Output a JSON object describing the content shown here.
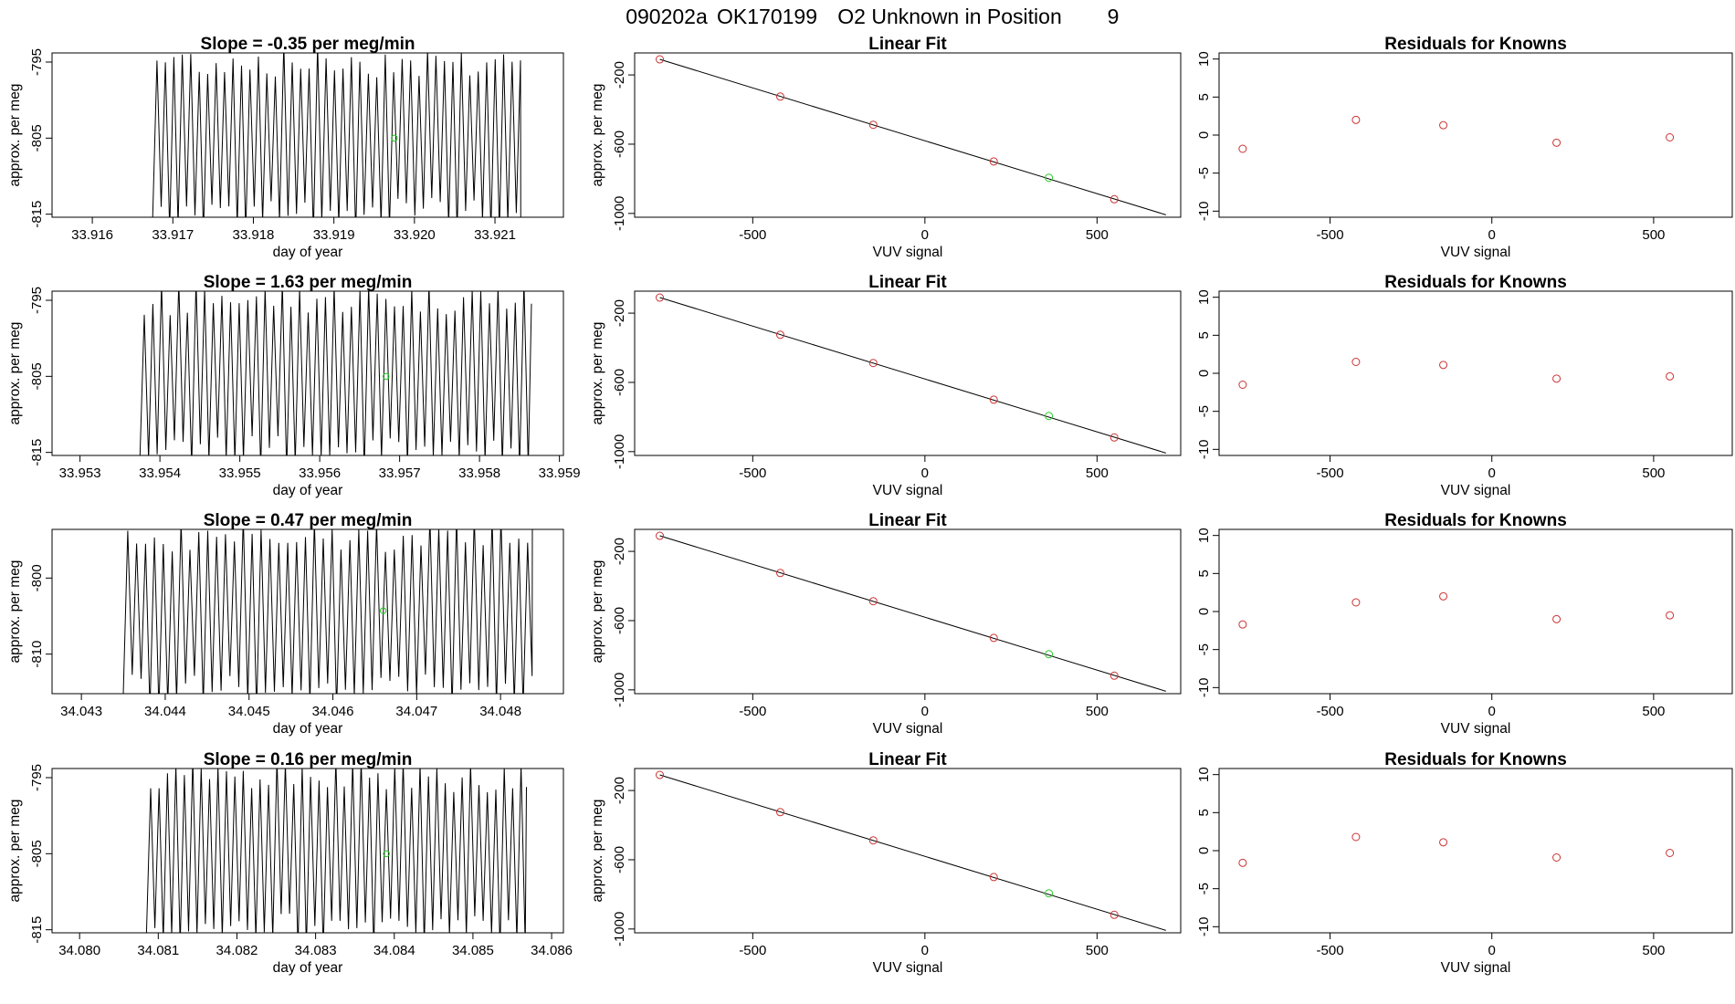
{
  "figure_title": {
    "run": "090202a",
    "sample": "OK170199",
    "description": "O2 Unknown in Position",
    "position": "9"
  },
  "colors": {
    "trace": "#000000",
    "known_point": "#cc3333",
    "unknown_point": "#22cc22"
  },
  "chart_data": [
    {
      "type": "line",
      "row": 0,
      "panel": "timeseries",
      "title_prefix": "Slope = ",
      "slope": "-0.35",
      "title_suffix": " per meg/min",
      "xlabel": "day of year",
      "ylabel": "approx. per meg",
      "xlim": [
        33.9155,
        33.92185
      ],
      "ylim": [
        -815.4,
        -793.8
      ],
      "xticks": [
        "33.916",
        "33.917",
        "33.918",
        "33.919",
        "33.920",
        "33.921"
      ],
      "yticks": [
        "-795",
        "-805",
        "-815"
      ],
      "trace_start": 33.91675,
      "trace_end": 33.92132,
      "trace_period": 0.000105,
      "trace_low": -815.5,
      "trace_high": -794.5,
      "mean_point": {
        "x": 33.91975,
        "y": -805.0
      }
    },
    {
      "type": "scatter",
      "row": 0,
      "panel": "linear_fit",
      "title": "Linear Fit",
      "xlabel": "VUV signal",
      "ylabel": "approx. per meg",
      "xlim": [
        -843,
        743
      ],
      "ylim": [
        -1022,
        -73
      ],
      "xticks": [
        "-500",
        "0",
        "500"
      ],
      "yticks": [
        "-200",
        "-600",
        "-1000"
      ],
      "knowns": [
        {
          "x": -770,
          "y": -110
        },
        {
          "x": -420,
          "y": -325
        },
        {
          "x": -150,
          "y": -488
        },
        {
          "x": 200,
          "y": -700
        },
        {
          "x": 550,
          "y": -918
        }
      ],
      "unknown": {
        "x": 360,
        "y": -794
      },
      "fit": {
        "x": [
          -770,
          700
        ],
        "y": [
          -110,
          -1008
        ]
      }
    },
    {
      "type": "scatter",
      "row": 0,
      "panel": "residuals",
      "title": "Residuals for Knowns",
      "xlabel": "VUV signal",
      "ylabel": "",
      "xlim": [
        -843,
        743
      ],
      "ylim": [
        -10.8,
        10.8
      ],
      "xticks": [
        "-500",
        "0",
        "500"
      ],
      "yticks": [
        "10",
        "5",
        "0",
        "-5",
        "-10"
      ],
      "knowns": [
        {
          "x": -770,
          "y": -1.8
        },
        {
          "x": -420,
          "y": 2.0
        },
        {
          "x": -150,
          "y": 1.3
        },
        {
          "x": 200,
          "y": -1.0
        },
        {
          "x": 550,
          "y": -0.3
        }
      ]
    },
    {
      "type": "line",
      "row": 1,
      "panel": "timeseries",
      "title_prefix": "Slope = ",
      "slope": "1.63",
      "title_suffix": " per meg/min",
      "xlabel": "day of year",
      "ylabel": "approx. per meg",
      "xlim": [
        33.95265,
        33.95905
      ],
      "ylim": [
        -815.4,
        -793.8
      ],
      "xticks": [
        "33.953",
        "33.954",
        "33.955",
        "33.956",
        "33.957",
        "33.958",
        "33.959"
      ],
      "yticks": [
        "-795",
        "-805",
        "-815"
      ],
      "trace_start": 33.95375,
      "trace_end": 33.95865,
      "trace_period": 0.000108,
      "trace_low": -815.5,
      "trace_high": -794.5,
      "mean_point": {
        "x": 33.95683,
        "y": -805.0
      }
    },
    {
      "type": "scatter",
      "row": 1,
      "panel": "linear_fit",
      "title": "Linear Fit",
      "xlabel": "VUV signal",
      "ylabel": "approx. per meg",
      "xlim": [
        -843,
        743
      ],
      "ylim": [
        -1022,
        -73
      ],
      "xticks": [
        "-500",
        "0",
        "500"
      ],
      "yticks": [
        "-200",
        "-600",
        "-1000"
      ],
      "knowns": [
        {
          "x": -770,
          "y": -110
        },
        {
          "x": -420,
          "y": -325
        },
        {
          "x": -150,
          "y": -488
        },
        {
          "x": 200,
          "y": -700
        },
        {
          "x": 550,
          "y": -918
        }
      ],
      "unknown": {
        "x": 360,
        "y": -794
      },
      "fit": {
        "x": [
          -770,
          700
        ],
        "y": [
          -110,
          -1008
        ]
      }
    },
    {
      "type": "scatter",
      "row": 1,
      "panel": "residuals",
      "title": "Residuals for Knowns",
      "xlabel": "VUV signal",
      "ylabel": "",
      "xlim": [
        -843,
        743
      ],
      "ylim": [
        -10.8,
        10.8
      ],
      "xticks": [
        "-500",
        "0",
        "500"
      ],
      "yticks": [
        "10",
        "5",
        "0",
        "-5",
        "-10"
      ],
      "knowns": [
        {
          "x": -770,
          "y": -1.5
        },
        {
          "x": -420,
          "y": 1.5
        },
        {
          "x": -150,
          "y": 1.1
        },
        {
          "x": 200,
          "y": -0.7
        },
        {
          "x": 550,
          "y": -0.4
        }
      ]
    },
    {
      "type": "line",
      "row": 2,
      "panel": "timeseries",
      "title_prefix": "Slope = ",
      "slope": "0.47",
      "title_suffix": " per meg/min",
      "xlabel": "day of year",
      "ylabel": "approx. per meg",
      "xlim": [
        34.04265,
        34.04875
      ],
      "ylim": [
        -815.2,
        -793.6
      ],
      "xticks": [
        "34.043",
        "34.044",
        "34.045",
        "34.046",
        "34.047",
        "34.048"
      ],
      "yticks": [
        "-800",
        "-810"
      ],
      "trace_start": 34.0435,
      "trace_end": 34.04838,
      "trace_period": 0.000106,
      "trace_low": -815.3,
      "trace_high": -794.0,
      "mean_point": {
        "x": 34.0466,
        "y": -804.3
      }
    },
    {
      "type": "scatter",
      "row": 2,
      "panel": "linear_fit",
      "title": "Linear Fit",
      "xlabel": "VUV signal",
      "ylabel": "approx. per meg",
      "xlim": [
        -843,
        743
      ],
      "ylim": [
        -1022,
        -73
      ],
      "xticks": [
        "-500",
        "0",
        "500"
      ],
      "yticks": [
        "-200",
        "-600",
        "-1000"
      ],
      "knowns": [
        {
          "x": -770,
          "y": -110
        },
        {
          "x": -420,
          "y": -325
        },
        {
          "x": -150,
          "y": -488
        },
        {
          "x": 200,
          "y": -700
        },
        {
          "x": 550,
          "y": -918
        }
      ],
      "unknown": {
        "x": 360,
        "y": -794
      },
      "fit": {
        "x": [
          -770,
          700
        ],
        "y": [
          -110,
          -1008
        ]
      }
    },
    {
      "type": "scatter",
      "row": 2,
      "panel": "residuals",
      "title": "Residuals for Knowns",
      "xlabel": "VUV signal",
      "ylabel": "",
      "xlim": [
        -843,
        743
      ],
      "ylim": [
        -10.8,
        10.8
      ],
      "xticks": [
        "-500",
        "0",
        "500"
      ],
      "yticks": [
        "10",
        "5",
        "0",
        "-5",
        "-10"
      ],
      "knowns": [
        {
          "x": -770,
          "y": -1.7
        },
        {
          "x": -420,
          "y": 1.2
        },
        {
          "x": -150,
          "y": 2.0
        },
        {
          "x": 200,
          "y": -1.0
        },
        {
          "x": 550,
          "y": -0.5
        }
      ]
    },
    {
      "type": "line",
      "row": 3,
      "panel": "timeseries",
      "title_prefix": "Slope = ",
      "slope": "0.16",
      "title_suffix": " per meg/min",
      "xlabel": "day of year",
      "ylabel": "approx. per meg",
      "xlim": [
        34.07965,
        34.08615
      ],
      "ylim": [
        -815.4,
        -793.8
      ],
      "xticks": [
        "34.080",
        "34.081",
        "34.082",
        "34.083",
        "34.084",
        "34.085",
        "34.086"
      ],
      "yticks": [
        "-795",
        "-805",
        "-815"
      ],
      "trace_start": 34.08085,
      "trace_end": 34.08568,
      "trace_period": 0.000107,
      "trace_low": -815.5,
      "trace_high": -794.5,
      "mean_point": {
        "x": 34.0839,
        "y": -805.0
      }
    },
    {
      "type": "scatter",
      "row": 3,
      "panel": "linear_fit",
      "title": "Linear Fit",
      "xlabel": "VUV signal",
      "ylabel": "approx. per meg",
      "xlim": [
        -843,
        743
      ],
      "ylim": [
        -1022,
        -73
      ],
      "xticks": [
        "-500",
        "0",
        "500"
      ],
      "yticks": [
        "-200",
        "-600",
        "-1000"
      ],
      "knowns": [
        {
          "x": -770,
          "y": -110
        },
        {
          "x": -420,
          "y": -325
        },
        {
          "x": -150,
          "y": -488
        },
        {
          "x": 200,
          "y": -700
        },
        {
          "x": 550,
          "y": -918
        }
      ],
      "unknown": {
        "x": 360,
        "y": -794
      },
      "fit": {
        "x": [
          -770,
          700
        ],
        "y": [
          -110,
          -1008
        ]
      }
    },
    {
      "type": "scatter",
      "row": 3,
      "panel": "residuals",
      "title": "Residuals for Knowns",
      "xlabel": "VUV signal",
      "ylabel": "",
      "xlim": [
        -843,
        743
      ],
      "ylim": [
        -10.8,
        10.8
      ],
      "xticks": [
        "-500",
        "0",
        "500"
      ],
      "yticks": [
        "10",
        "5",
        "0",
        "-5",
        "-10"
      ],
      "knowns": [
        {
          "x": -770,
          "y": -1.6
        },
        {
          "x": -420,
          "y": 1.8
        },
        {
          "x": -150,
          "y": 1.1
        },
        {
          "x": 200,
          "y": -0.9
        },
        {
          "x": 550,
          "y": -0.3
        }
      ]
    }
  ]
}
